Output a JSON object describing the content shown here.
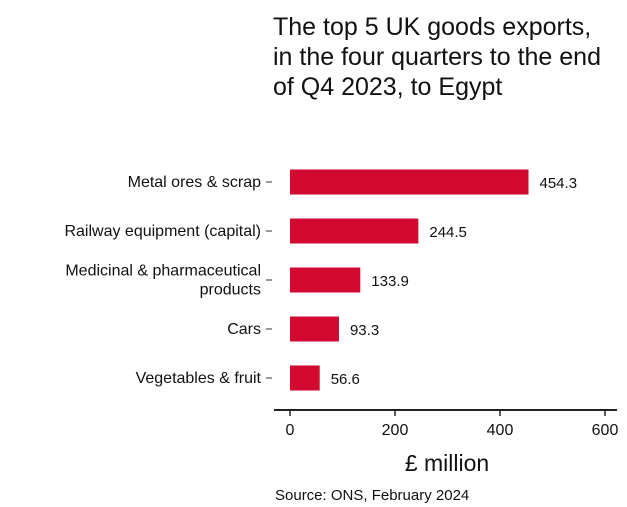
{
  "chart_data": {
    "type": "bar",
    "orientation": "horizontal",
    "title": "The top 5 UK goods exports, in the four quarters to the end of Q4 2023, to Egypt",
    "categories": [
      [
        "Metal ores & scrap"
      ],
      [
        "Railway equipment (capital)"
      ],
      [
        "Medicinal & pharmaceutical",
        "products"
      ],
      [
        "Cars"
      ],
      [
        "Vegetables & fruit"
      ]
    ],
    "values": [
      454.3,
      244.5,
      133.9,
      93.3,
      56.6
    ],
    "value_labels": [
      "454.3",
      "244.5",
      "133.9",
      "93.3",
      "56.6"
    ],
    "xlabel": "£ million",
    "xlim": [
      0,
      600
    ],
    "xticks": [
      0,
      200,
      400,
      600
    ],
    "bar_color": "#d20a2f",
    "grid": false,
    "source": "Source: ONS, February 2024"
  }
}
